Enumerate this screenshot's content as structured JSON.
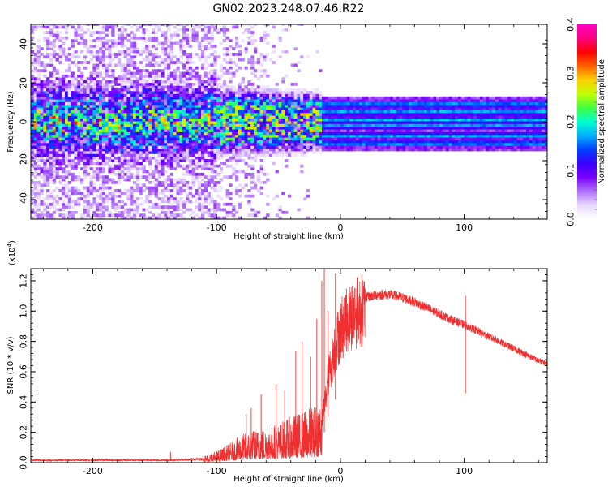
{
  "figure": {
    "title": "GN02.2023.248.07.46.R22"
  },
  "chart_data": [
    {
      "type": "heatmap",
      "name": "spectrogram",
      "xlabel": "Height of straight line (km)",
      "ylabel": "Frequency (Hz)",
      "xlim": [
        -250,
        167
      ],
      "ylim": [
        -50,
        50
      ],
      "x_ticks": [
        -200,
        -100,
        0,
        100
      ],
      "x_tick_labels": [
        "-200",
        "-100",
        "0",
        "100"
      ],
      "y_ticks": [
        -40,
        -20,
        0,
        20,
        40
      ],
      "y_tick_labels": [
        "-40",
        "-20",
        "0",
        "20",
        "40"
      ],
      "colorbar": {
        "label": "Normalized spectral amplitude",
        "range": [
          0.0,
          0.4
        ],
        "ticks": [
          0.0,
          0.1,
          0.2,
          0.3,
          0.4
        ],
        "tick_labels": [
          "0.0",
          "0.1",
          "0.2",
          "0.3",
          "0.4"
        ],
        "colormap": [
          "#ffffff",
          "#e8d8ff",
          "#b070ff",
          "#7a00ff",
          "#3a00ff",
          "#0040ff",
          "#00b0ff",
          "#00ffd0",
          "#40ff40",
          "#c0ff00",
          "#ffd000",
          "#ff6000",
          "#ff0000",
          "#ff0080",
          "#ff00c0"
        ]
      },
      "features": {
        "noise_region_x": [
          -250,
          -100
        ],
        "transition_x": [
          -100,
          -15
        ],
        "signal_region_x": [
          -15,
          167
        ],
        "noise_band_half_width_hz": 15,
        "signal_band_hz": [
          -15,
          13
        ],
        "signal_lines_hz": [
          -11,
          -7,
          -2,
          1,
          5,
          9
        ]
      },
      "grid": false
    },
    {
      "type": "line",
      "name": "snr",
      "xlabel": "Height of straight line (km)",
      "ylabel": "SNR (10 * v/v)",
      "y_multiplier": "(x10",
      "y_multiplier_exp": "4",
      "y_multiplier_close": ")",
      "xlim": [
        -250,
        167
      ],
      "ylim": [
        0.0,
        1.28
      ],
      "x_ticks": [
        -200,
        -100,
        0,
        100
      ],
      "x_tick_labels": [
        "-200",
        "-100",
        "0",
        "100"
      ],
      "y_ticks": [
        0.0,
        0.2,
        0.4,
        0.6,
        0.8,
        1.0,
        1.2
      ],
      "y_tick_labels": [
        "0.0",
        "0.2",
        "0.4",
        "0.6",
        "0.8",
        "1.0",
        "1.2"
      ],
      "color": "#f03030",
      "grid": false,
      "envelope": {
        "x": [
          -250,
          -140,
          -110,
          -100,
          -90,
          -80,
          -70,
          -60,
          -50,
          -40,
          -30,
          -20,
          -15,
          -12,
          -10,
          -5,
          0,
          5,
          10,
          20,
          30,
          40,
          50,
          60,
          70,
          80,
          90,
          100,
          110,
          120,
          130,
          140,
          150,
          160,
          167
        ],
        "y": [
          0.02,
          0.02,
          0.03,
          0.05,
          0.08,
          0.12,
          0.14,
          0.15,
          0.17,
          0.2,
          0.22,
          0.25,
          0.3,
          0.45,
          0.6,
          0.8,
          0.95,
          1.02,
          1.06,
          1.1,
          1.12,
          1.12,
          1.1,
          1.07,
          1.03,
          0.99,
          0.95,
          0.92,
          0.88,
          0.84,
          0.8,
          0.76,
          0.72,
          0.68,
          0.66
        ]
      },
      "spikes": [
        {
          "x": -137,
          "y": 0.07
        },
        {
          "x": -76,
          "y": 0.32
        },
        {
          "x": -72,
          "y": 0.36
        },
        {
          "x": -64,
          "y": 0.45
        },
        {
          "x": -52,
          "y": 0.52
        },
        {
          "x": -45,
          "y": 0.48
        },
        {
          "x": -36,
          "y": 0.74
        },
        {
          "x": -31,
          "y": 0.8
        },
        {
          "x": -24,
          "y": 0.7
        },
        {
          "x": -19,
          "y": 0.95
        },
        {
          "x": -15,
          "y": 1.2
        },
        {
          "x": -13,
          "y": 1.28
        },
        {
          "x": -10,
          "y": 1.0
        },
        {
          "x": -4,
          "y": 1.25
        },
        {
          "x": 101,
          "y": 1.1
        }
      ]
    }
  ]
}
